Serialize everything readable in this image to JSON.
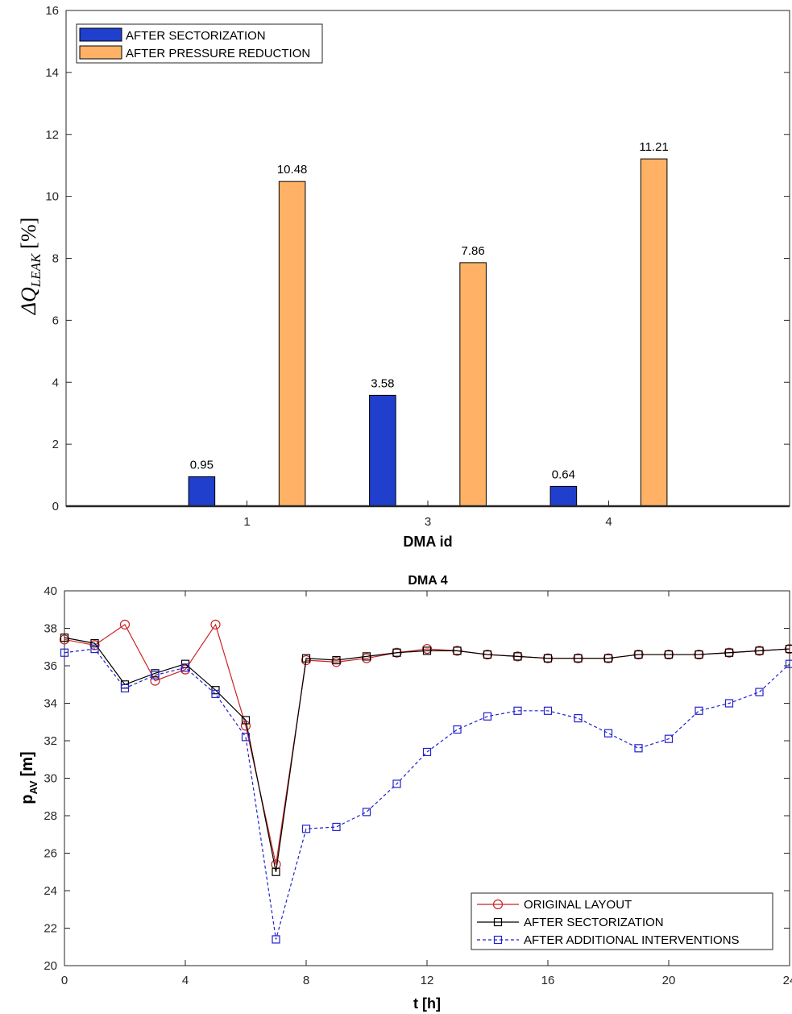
{
  "chart_data": [
    {
      "type": "bar",
      "categories": [
        "1",
        "3",
        "4"
      ],
      "series": [
        {
          "name": "AFTER SECTORIZATION",
          "color": "#1f3fcc",
          "values": [
            0.95,
            3.58,
            0.64
          ]
        },
        {
          "name": "AFTER PRESSURE REDUCTION",
          "color": "#ffb266",
          "values": [
            10.48,
            7.86,
            11.21
          ]
        }
      ],
      "data_labels": [
        [
          "0.95",
          "3.58",
          "0.64"
        ],
        [
          "10.48",
          "7.86",
          "11.21"
        ]
      ],
      "xlabel": "DMA id",
      "ylabel_main": "ΔQ",
      "ylabel_sub": "LEAK",
      "ylabel_unit": "[%]",
      "ylim": [
        0,
        16
      ],
      "yticks": [
        "0",
        "2",
        "4",
        "6",
        "8",
        "10",
        "12",
        "14",
        "16"
      ],
      "legend": "top-left",
      "grid": false
    },
    {
      "type": "line",
      "title": "DMA  4",
      "x": [
        0,
        1,
        2,
        3,
        4,
        5,
        6,
        7,
        8,
        9,
        10,
        11,
        12,
        13,
        14,
        15,
        16,
        17,
        18,
        19,
        20,
        21,
        22,
        23,
        24
      ],
      "series": [
        {
          "name": "ORIGINAL LAYOUT",
          "color": "#cc2222",
          "marker": "circle",
          "dash": "solid",
          "values": [
            37.4,
            37.1,
            38.2,
            35.2,
            35.8,
            38.2,
            32.8,
            25.4,
            36.3,
            36.2,
            36.4,
            36.7,
            36.9,
            36.8,
            36.6,
            36.5,
            36.4,
            36.4,
            36.4,
            36.6,
            36.6,
            36.6,
            36.7,
            36.8,
            36.9
          ]
        },
        {
          "name": "AFTER SECTORIZATION",
          "color": "#000000",
          "marker": "square",
          "dash": "solid",
          "values": [
            37.5,
            37.2,
            35.0,
            35.6,
            36.1,
            34.7,
            33.1,
            25.0,
            36.4,
            36.3,
            36.5,
            36.7,
            36.8,
            36.8,
            36.6,
            36.5,
            36.4,
            36.4,
            36.4,
            36.6,
            36.6,
            36.6,
            36.7,
            36.8,
            36.9
          ]
        },
        {
          "name": "AFTER ADDITIONAL INTERVENTIONS",
          "color": "#2222cc",
          "marker": "square",
          "dash": "dashed",
          "values": [
            36.7,
            36.9,
            34.8,
            35.5,
            35.9,
            34.5,
            32.2,
            21.4,
            27.3,
            27.4,
            28.2,
            29.7,
            31.4,
            32.6,
            33.3,
            33.6,
            33.6,
            33.2,
            32.4,
            31.6,
            32.1,
            33.6,
            34.0,
            34.6,
            36.1
          ]
        }
      ],
      "xlabel": "t [h]",
      "ylabel_main": "p",
      "ylabel_sub": "AV",
      "ylabel_unit": "[m]",
      "xlim": [
        0,
        24
      ],
      "ylim": [
        20,
        40
      ],
      "xticks": [
        "0",
        "4",
        "8",
        "12",
        "16",
        "20",
        "24"
      ],
      "yticks": [
        "20",
        "22",
        "24",
        "26",
        "28",
        "30",
        "32",
        "34",
        "36",
        "38",
        "40"
      ],
      "legend": "bottom-right",
      "grid": false
    }
  ]
}
